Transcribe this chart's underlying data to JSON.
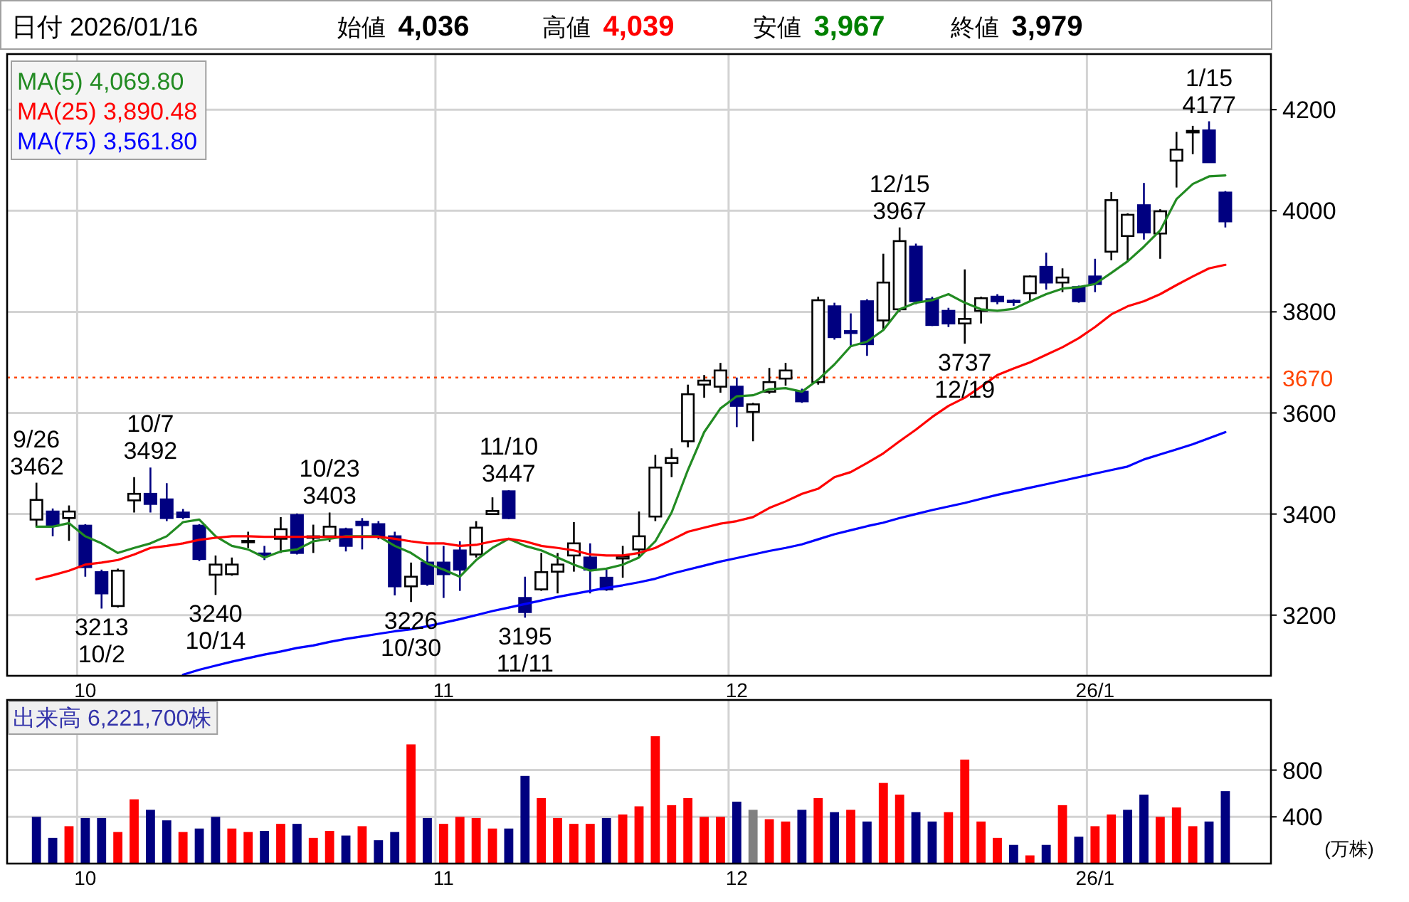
{
  "chart_data": [
    {
      "type": "candlestick",
      "title": "日付 2026/01/16",
      "annotations": [
        "始値 4,036",
        "高値 4,039",
        "安値 3,967",
        "終値 3,979",
        {
          "text": "9/26\n3462",
          "y": 3462
        },
        {
          "text": "10/7\n3492",
          "y": 3492
        },
        {
          "text": "10/23\n3403",
          "y": 3403
        },
        {
          "text": "11/10\n3447",
          "y": 3447
        },
        {
          "text": "12/15\n3967",
          "y": 3967
        },
        {
          "text": "1/15\n4177",
          "y": 4177
        },
        {
          "text": "3213\n10/2",
          "y": 3213
        },
        {
          "text": "3240\n10/14",
          "y": 3240
        },
        {
          "text": "3226\n10/30",
          "y": 3226
        },
        {
          "text": "3195\n11/11",
          "y": 3195
        },
        {
          "text": "3737\n12/19",
          "y": 3737
        }
      ],
      "categories": [
        null,
        null,
        null,
        "10",
        null,
        null,
        null,
        null,
        null,
        null,
        null,
        null,
        null,
        null,
        null,
        null,
        null,
        null,
        null,
        null,
        null,
        null,
        null,
        null,
        null,
        "11",
        null,
        null,
        null,
        null,
        null,
        null,
        null,
        null,
        null,
        null,
        null,
        null,
        null,
        null,
        null,
        null,
        null,
        "12",
        null,
        null,
        null,
        null,
        null,
        null,
        null,
        null,
        null,
        null,
        null,
        null,
        null,
        null,
        null,
        null,
        null,
        null,
        null,
        null,
        null,
        "26/1",
        null,
        null,
        null,
        null,
        null,
        null,
        null,
        null
      ],
      "ohlc": [
        [
          3389,
          3462,
          3375,
          3428
        ],
        [
          3405,
          3411,
          3356,
          3377
        ],
        [
          3392,
          3417,
          3347,
          3405
        ],
        [
          3377,
          3380,
          3276,
          3295
        ],
        [
          3285,
          3290,
          3213,
          3243
        ],
        [
          3218,
          3292,
          3215,
          3288
        ],
        [
          3427,
          3473,
          3403,
          3440
        ],
        [
          3440,
          3492,
          3403,
          3420
        ],
        [
          3429,
          3461,
          3386,
          3392
        ],
        [
          3403,
          3410,
          3390,
          3394
        ],
        [
          3377,
          3380,
          3307,
          3311
        ],
        [
          3280,
          3318,
          3240,
          3300
        ],
        [
          3281,
          3314,
          3278,
          3300
        ],
        [
          3345,
          3365,
          3333,
          3347
        ],
        [
          3322,
          3337,
          3309,
          3320
        ],
        [
          3351,
          3394,
          3323,
          3370
        ],
        [
          3398,
          3401,
          3320,
          3323
        ],
        [
          3353,
          3379,
          3323,
          3356
        ],
        [
          3356,
          3403,
          3345,
          3375
        ],
        [
          3370,
          3373,
          3326,
          3337
        ],
        [
          3385,
          3392,
          3330,
          3378
        ],
        [
          3380,
          3386,
          3350,
          3356
        ],
        [
          3356,
          3365,
          3239,
          3257
        ],
        [
          3257,
          3304,
          3226,
          3276
        ],
        [
          3304,
          3337,
          3258,
          3262
        ],
        [
          3304,
          3337,
          3234,
          3281
        ],
        [
          3328,
          3346,
          3248,
          3290
        ],
        [
          3320,
          3386,
          3314,
          3373
        ],
        [
          3400,
          3433,
          3398,
          3406
        ],
        [
          3445,
          3447,
          3390,
          3392
        ],
        [
          3234,
          3276,
          3195,
          3206
        ],
        [
          3251,
          3323,
          3248,
          3285
        ],
        [
          3286,
          3323,
          3243,
          3300
        ],
        [
          3318,
          3384,
          3286,
          3342
        ],
        [
          3314,
          3342,
          3243,
          3290
        ],
        [
          3274,
          3290,
          3248,
          3251
        ],
        [
          3312,
          3337,
          3274,
          3316
        ],
        [
          3330,
          3405,
          3314,
          3356
        ],
        [
          3395,
          3517,
          3386,
          3492
        ],
        [
          3501,
          3530,
          3473,
          3511
        ],
        [
          3544,
          3656,
          3532,
          3637
        ],
        [
          3656,
          3675,
          3630,
          3664
        ],
        [
          3652,
          3699,
          3640,
          3684
        ],
        [
          3652,
          3670,
          3572,
          3614
        ],
        [
          3602,
          3620,
          3544,
          3617
        ],
        [
          3642,
          3689,
          3638,
          3661
        ],
        [
          3668,
          3699,
          3654,
          3684
        ],
        [
          3642,
          3648,
          3620,
          3623
        ],
        [
          3661,
          3830,
          3656,
          3823
        ],
        [
          3811,
          3818,
          3745,
          3750
        ],
        [
          3762,
          3797,
          3732,
          3758
        ],
        [
          3821,
          3825,
          3713,
          3736
        ],
        [
          3783,
          3915,
          3764,
          3858
        ],
        [
          3805,
          3967,
          3800,
          3940
        ],
        [
          3929,
          3935,
          3815,
          3821
        ],
        [
          3825,
          3830,
          3772,
          3774
        ],
        [
          3802,
          3808,
          3770,
          3777
        ],
        [
          3777,
          3884,
          3737,
          3786
        ],
        [
          3802,
          3830,
          3777,
          3827
        ],
        [
          3830,
          3835,
          3815,
          3821
        ],
        [
          3822,
          3825,
          3812,
          3820
        ],
        [
          3837,
          3872,
          3821,
          3870
        ],
        [
          3889,
          3917,
          3844,
          3858
        ],
        [
          3858,
          3886,
          3839,
          3868
        ],
        [
          3849,
          3852,
          3818,
          3821
        ],
        [
          3870,
          3905,
          3839,
          3855
        ],
        [
          3919,
          4037,
          3902,
          4021
        ],
        [
          3950,
          3995,
          3899,
          3992
        ],
        [
          4011,
          4055,
          3943,
          3957
        ],
        [
          3955,
          4003,
          3905,
          3999
        ],
        [
          4099,
          4156,
          4046,
          4121
        ],
        [
          4155,
          4168,
          4112,
          4158
        ],
        [
          4159,
          4177,
          4095,
          4096
        ],
        [
          4036,
          4039,
          3967,
          3979
        ]
      ],
      "colors": [
        "#ffffff",
        "#000080",
        "#ffffff",
        "#000080",
        "#000080",
        "#ffffff",
        "#ffffff",
        "#000080",
        "#000080",
        "#000080",
        "#000080",
        "#ffffff",
        "#ffffff",
        "#ffffff",
        "#000080",
        "#ffffff",
        "#000080",
        "#ffffff",
        "#ffffff",
        "#000080",
        "#000080",
        "#000080",
        "#000080",
        "#ffffff",
        "#000080",
        "#000080",
        "#000080",
        "#ffffff",
        "#ffffff",
        "#000080",
        "#000080",
        "#ffffff",
        "#ffffff",
        "#ffffff",
        "#000080",
        "#000080",
        "#ffffff",
        "#ffffff",
        "#ffffff",
        "#ffffff",
        "#ffffff",
        "#ffffff",
        "#ffffff",
        "#000080",
        "#ffffff",
        "#ffffff",
        "#ffffff",
        "#000080",
        "#ffffff",
        "#000080",
        "#000080",
        "#000080",
        "#ffffff",
        "#ffffff",
        "#000080",
        "#000080",
        "#000080",
        "#ffffff",
        "#ffffff",
        "#000080",
        "#000080",
        "#ffffff",
        "#000080",
        "#ffffff",
        "#000080",
        "#000080",
        "#ffffff",
        "#ffffff",
        "#000080",
        "#ffffff",
        "#ffffff",
        "#ffffff",
        "#000080",
        "#000080"
      ],
      "series": [
        {
          "name": "MA(5) 4,069.80",
          "type": "line",
          "color": "#228b22",
          "values": [
            3375,
            3375,
            3382,
            3356,
            3342,
            3323,
            3333,
            3342,
            3356,
            3384,
            3389,
            3356,
            3337,
            3330,
            3314,
            3326,
            3330,
            3346,
            3351,
            3356,
            3356,
            3356,
            3337,
            3323,
            3302,
            3290,
            3276,
            3309,
            3333,
            3351,
            3337,
            3328,
            3314,
            3300,
            3288,
            3292,
            3300,
            3314,
            3346,
            3403,
            3487,
            3562,
            3609,
            3633,
            3635,
            3647,
            3649,
            3642,
            3666,
            3696,
            3732,
            3741,
            3764,
            3805,
            3818,
            3823,
            3835,
            3818,
            3805,
            3802,
            3806,
            3821,
            3835,
            3846,
            3849,
            3855,
            3877,
            3900,
            3929,
            3961,
            4023,
            4053,
            4068,
            4070
          ]
        },
        {
          "name": "MA(25) 3,890.48",
          "type": "line",
          "color": "#ff0000",
          "values": [
            3271,
            3279,
            3288,
            3300,
            3304,
            3309,
            3320,
            3333,
            3337,
            3342,
            3349,
            3353,
            3356,
            3356,
            3355,
            3355,
            3355,
            3355,
            3355,
            3355,
            3355,
            3355,
            3351,
            3346,
            3342,
            3342,
            3337,
            3339,
            3346,
            3351,
            3346,
            3337,
            3333,
            3328,
            3320,
            3318,
            3318,
            3323,
            3333,
            3349,
            3365,
            3373,
            3381,
            3386,
            3394,
            3412,
            3425,
            3440,
            3450,
            3473,
            3483,
            3501,
            3520,
            3544,
            3567,
            3592,
            3614,
            3630,
            3652,
            3675,
            3688,
            3700,
            3715,
            3730,
            3748,
            3770,
            3795,
            3811,
            3821,
            3835,
            3853,
            3870,
            3886,
            3893
          ]
        },
        {
          "name": "MA(75) 3,561.80",
          "type": "line",
          "color": "#0000ff",
          "values": [
            null,
            null,
            null,
            null,
            null,
            null,
            null,
            null,
            null,
            3082,
            3092,
            3100,
            3108,
            3115,
            3122,
            3128,
            3135,
            3140,
            3147,
            3153,
            3158,
            3163,
            3168,
            3172,
            3178,
            3185,
            3192,
            3200,
            3208,
            3215,
            3222,
            3229,
            3236,
            3242,
            3248,
            3254,
            3259,
            3265,
            3272,
            3282,
            3290,
            3298,
            3306,
            3313,
            3320,
            3327,
            3333,
            3340,
            3350,
            3360,
            3368,
            3376,
            3383,
            3392,
            3400,
            3408,
            3415,
            3422,
            3430,
            3438,
            3445,
            3452,
            3459,
            3466,
            3473,
            3480,
            3487,
            3494,
            3508,
            3518,
            3528,
            3538,
            3550,
            3562
          ]
        }
      ],
      "ylim": [
        3080,
        4310
      ],
      "yticks": [
        3200,
        3400,
        3600,
        3800,
        4000,
        4200
      ],
      "ref_lines": [
        {
          "axis": "y",
          "value": 3670,
          "label": "3670",
          "color": "#ff4500",
          "line_style": "dotted"
        }
      ],
      "grid": true,
      "legend": "top left"
    },
    {
      "type": "bar",
      "title": "出来高 6,221,700株",
      "ylabel": "(万株)",
      "categories": [
        null,
        null,
        null,
        "10",
        null,
        null,
        null,
        null,
        null,
        null,
        null,
        null,
        null,
        null,
        null,
        null,
        null,
        null,
        null,
        null,
        null,
        null,
        null,
        null,
        null,
        "11",
        null,
        null,
        null,
        null,
        null,
        null,
        null,
        null,
        null,
        null,
        null,
        null,
        null,
        null,
        null,
        null,
        null,
        "12",
        null,
        null,
        null,
        null,
        null,
        null,
        null,
        null,
        null,
        null,
        null,
        null,
        null,
        null,
        null,
        null,
        null,
        null,
        null,
        null,
        null,
        "26/1",
        null,
        null,
        null,
        null,
        null,
        null,
        null,
        null
      ],
      "values": [
        400,
        220,
        320,
        390,
        390,
        270,
        550,
        460,
        370,
        270,
        300,
        400,
        300,
        270,
        280,
        340,
        340,
        220,
        280,
        240,
        320,
        200,
        270,
        1020,
        390,
        340,
        400,
        390,
        300,
        300,
        750,
        560,
        390,
        340,
        340,
        390,
        420,
        490,
        1090,
        500,
        560,
        400,
        400,
        530,
        460,
        380,
        360,
        460,
        560,
        440,
        460,
        360,
        690,
        590,
        440,
        360,
        440,
        890,
        360,
        220,
        160,
        70,
        160,
        500,
        230,
        320,
        420,
        460,
        590,
        400,
        480,
        320,
        360,
        620
      ],
      "colors": [
        "#000080",
        "#000080",
        "#ff0000",
        "#000080",
        "#000080",
        "#ff0000",
        "#ff0000",
        "#000080",
        "#000080",
        "#ff0000",
        "#000080",
        "#000080",
        "#ff0000",
        "#ff0000",
        "#000080",
        "#ff0000",
        "#000080",
        "#ff0000",
        "#ff0000",
        "#000080",
        "#ff0000",
        "#000080",
        "#000080",
        "#ff0000",
        "#000080",
        "#ff0000",
        "#ff0000",
        "#ff0000",
        "#ff0000",
        "#000080",
        "#000080",
        "#ff0000",
        "#ff0000",
        "#ff0000",
        "#ff0000",
        "#000080",
        "#ff0000",
        "#ff0000",
        "#ff0000",
        "#ff0000",
        "#ff0000",
        "#ff0000",
        "#ff0000",
        "#000080",
        "#808080",
        "#ff0000",
        "#ff0000",
        "#000080",
        "#ff0000",
        "#000080",
        "#ff0000",
        "#000080",
        "#ff0000",
        "#ff0000",
        "#000080",
        "#000080",
        "#ff0000",
        "#ff0000",
        "#ff0000",
        "#ff0000",
        "#000080",
        "#ff0000",
        "#000080",
        "#ff0000",
        "#000080",
        "#ff0000",
        "#ff0000",
        "#000080",
        "#000080",
        "#ff0000",
        "#ff0000",
        "#ff0000",
        "#000080",
        "#000080"
      ],
      "ylim": [
        0,
        1400
      ],
      "yticks": [
        400,
        800
      ],
      "grid": true
    }
  ]
}
